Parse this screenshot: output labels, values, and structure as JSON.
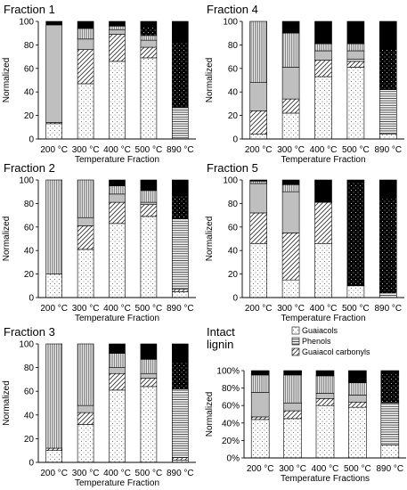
{
  "colors": {
    "black": "#000000",
    "grey": "#bfbfbf",
    "dark_grey": "#6f6f6f",
    "white": "#ffffff"
  },
  "legend": {
    "items": [
      {
        "label": "Guaiacols",
        "pattern": "dots"
      },
      {
        "label": "Phenols",
        "pattern": "hlines"
      },
      {
        "label": "Guaiacol carbonyls",
        "pattern": "diag"
      }
    ]
  },
  "chart_data": [
    {
      "type": "bar",
      "stacked": true,
      "title": "Fraction 1",
      "xlabel": "Temperature Fraction",
      "ylabel": "Normalized",
      "ylim": [
        0,
        100
      ],
      "yticks": [
        0,
        20,
        40,
        60,
        80,
        100
      ],
      "ytick_labels": [
        "0",
        "20",
        "40",
        "60",
        "80",
        "100"
      ],
      "categories": [
        "200 °C",
        "300 °C",
        "400 °C",
        "500 °C",
        "890 °C"
      ],
      "series": [
        {
          "pattern": "dots",
          "values": [
            13,
            47,
            66,
            69,
            0
          ]
        },
        {
          "pattern": "diag",
          "values": [
            1,
            29,
            23,
            9,
            0
          ]
        },
        {
          "pattern": "hlines",
          "values": [
            0,
            0,
            0,
            0,
            27
          ]
        },
        {
          "pattern": "grey",
          "values": [
            83,
            9,
            4,
            6,
            0
          ]
        },
        {
          "pattern": "vlines",
          "values": [
            0,
            9,
            3,
            4,
            0
          ]
        },
        {
          "pattern": "black-dots",
          "values": [
            0,
            0,
            0,
            8,
            56
          ]
        },
        {
          "pattern": "black",
          "values": [
            3,
            6,
            4,
            4,
            17
          ]
        }
      ]
    },
    {
      "type": "bar",
      "stacked": true,
      "title": "Fraction 4",
      "xlabel": "Temperature Fraction",
      "ylabel": "Normalized",
      "ylim": [
        0,
        100
      ],
      "yticks": [
        0,
        20,
        40,
        60,
        80,
        100
      ],
      "ytick_labels": [
        "0",
        "20",
        "40",
        "60",
        "80",
        "100"
      ],
      "categories": [
        "200 °C",
        "300 °C",
        "400 °C",
        "500 °C",
        "890 °C"
      ],
      "series": [
        {
          "pattern": "dots",
          "values": [
            4,
            22,
            53,
            61,
            4
          ]
        },
        {
          "pattern": "diag",
          "values": [
            20,
            12,
            14,
            5,
            0
          ]
        },
        {
          "pattern": "hlines",
          "values": [
            0,
            0,
            0,
            2,
            38
          ]
        },
        {
          "pattern": "grey",
          "values": [
            24,
            27,
            8,
            7,
            0
          ]
        },
        {
          "pattern": "vlines",
          "values": [
            52,
            29,
            6,
            6,
            0
          ]
        },
        {
          "pattern": "black-dots",
          "values": [
            0,
            0,
            0,
            0,
            34
          ]
        },
        {
          "pattern": "black",
          "values": [
            0,
            10,
            19,
            19,
            24
          ]
        }
      ]
    },
    {
      "type": "bar",
      "stacked": true,
      "title": "Fraction 2",
      "xlabel": "Temperature Fraction",
      "ylabel": "Normalized",
      "ylim": [
        0,
        100
      ],
      "yticks": [
        0,
        20,
        40,
        60,
        80,
        100
      ],
      "ytick_labels": [
        "0",
        "20",
        "40",
        "60",
        "80",
        "100"
      ],
      "categories": [
        "200 °C",
        "300 °C",
        "400 °C",
        "500 °C",
        "890 °C"
      ],
      "series": [
        {
          "pattern": "dots",
          "values": [
            20,
            41,
            63,
            69,
            5
          ]
        },
        {
          "pattern": "diag",
          "values": [
            0,
            20,
            18,
            10,
            2
          ]
        },
        {
          "pattern": "hlines",
          "values": [
            0,
            0,
            0,
            0,
            60
          ]
        },
        {
          "pattern": "grey",
          "values": [
            0,
            7,
            7,
            2,
            0
          ]
        },
        {
          "pattern": "vlines",
          "values": [
            80,
            32,
            7,
            10,
            0
          ]
        },
        {
          "pattern": "black-dots",
          "values": [
            0,
            0,
            0,
            0,
            20
          ]
        },
        {
          "pattern": "black",
          "values": [
            0,
            0,
            5,
            9,
            13
          ]
        }
      ]
    },
    {
      "type": "bar",
      "stacked": true,
      "title": "Fraction 5",
      "xlabel": "Temperature Fraction",
      "ylabel": "Normalized",
      "ylim": [
        0,
        100
      ],
      "yticks": [
        0,
        20,
        40,
        60,
        80,
        100
      ],
      "ytick_labels": [
        "0",
        "20",
        "40",
        "60",
        "80",
        "100"
      ],
      "categories": [
        "200 °C",
        "300 °C",
        "400 °C",
        "500 °C",
        "890 °C"
      ],
      "series": [
        {
          "pattern": "dots",
          "values": [
            46,
            15,
            46,
            10,
            0
          ]
        },
        {
          "pattern": "diag",
          "values": [
            26,
            40,
            35,
            0,
            0
          ]
        },
        {
          "pattern": "hlines",
          "values": [
            0,
            0,
            0,
            0,
            4
          ]
        },
        {
          "pattern": "grey",
          "values": [
            25,
            35,
            0,
            0,
            0
          ]
        },
        {
          "pattern": "vlines",
          "values": [
            2,
            6,
            0,
            0,
            0
          ]
        },
        {
          "pattern": "black-dots",
          "values": [
            0,
            0,
            0,
            88,
            80
          ]
        },
        {
          "pattern": "black",
          "values": [
            1,
            4,
            19,
            2,
            16
          ]
        }
      ]
    },
    {
      "type": "bar",
      "stacked": true,
      "title": "Fraction 3",
      "xlabel": "Temperature Fraction",
      "ylabel": "Normalized",
      "ylim": [
        0,
        100
      ],
      "yticks": [
        0,
        20,
        40,
        60,
        80,
        100
      ],
      "ytick_labels": [
        "0",
        "20",
        "40",
        "60",
        "80",
        "100"
      ],
      "categories": [
        "200 °C",
        "300 °C",
        "400 °C",
        "500 °C",
        "890 °C"
      ],
      "series": [
        {
          "pattern": "dots",
          "values": [
            10,
            32,
            61,
            64,
            2
          ]
        },
        {
          "pattern": "diag",
          "values": [
            2,
            10,
            14,
            7,
            2
          ]
        },
        {
          "pattern": "hlines",
          "values": [
            0,
            0,
            0,
            0,
            58
          ]
        },
        {
          "pattern": "grey",
          "values": [
            0,
            6,
            5,
            4,
            0
          ]
        },
        {
          "pattern": "vlines",
          "values": [
            88,
            52,
            12,
            12,
            0
          ]
        },
        {
          "pattern": "black-dots",
          "values": [
            0,
            0,
            0,
            0,
            23
          ]
        },
        {
          "pattern": "black",
          "values": [
            0,
            0,
            8,
            13,
            15
          ]
        }
      ]
    },
    {
      "type": "bar",
      "stacked": true,
      "title": "Intact lignin",
      "title_lines": [
        "Intact",
        "lignin"
      ],
      "xlabel": "Temperature Fractions",
      "ylabel": "Normalized",
      "ylim": [
        0,
        100
      ],
      "yticks": [
        0,
        20,
        40,
        60,
        80,
        100
      ],
      "ytick_labels": [
        "0%",
        "20%",
        "40%",
        "60%",
        "80%",
        "100%"
      ],
      "categories": [
        "200 °C",
        "300 °C",
        "400 °C",
        "500 °C",
        "890 °C"
      ],
      "series": [
        {
          "pattern": "dots",
          "values": [
            44,
            45,
            60,
            58,
            15
          ]
        },
        {
          "pattern": "diag",
          "values": [
            3,
            9,
            8,
            6,
            0
          ]
        },
        {
          "pattern": "hlines",
          "values": [
            0,
            0,
            0,
            0,
            48
          ]
        },
        {
          "pattern": "grey",
          "values": [
            28,
            9,
            6,
            8,
            0
          ]
        },
        {
          "pattern": "vlines",
          "values": [
            20,
            32,
            20,
            14,
            0
          ]
        },
        {
          "pattern": "black-dots",
          "values": [
            0,
            0,
            0,
            0,
            33
          ]
        },
        {
          "pattern": "black",
          "values": [
            5,
            5,
            6,
            14,
            4
          ]
        }
      ]
    }
  ]
}
